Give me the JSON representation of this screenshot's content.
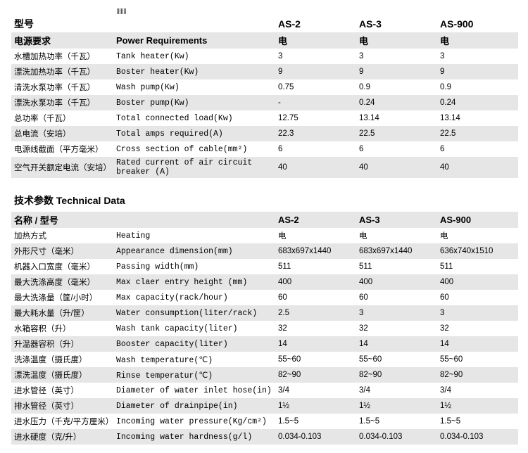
{
  "colors": {
    "stripe": "#e6e6e6",
    "text": "#000000"
  },
  "models": [
    "AS-2",
    "AS-3",
    "AS-900"
  ],
  "top": {
    "model_label": "型号",
    "power_label_zh": "电源要求",
    "power_label_en": "Power Requirements",
    "electric": "电",
    "rows": [
      {
        "zh": "水槽加热功率（千瓦）",
        "en": "Tank heater(Kw)",
        "v": [
          "3",
          "3",
          "3"
        ]
      },
      {
        "zh": "漂洗加热功率（千瓦）",
        "en": "Boster heater(Kw)",
        "v": [
          "9",
          "9",
          "9"
        ]
      },
      {
        "zh": "清洗水泵功率（千瓦）",
        "en": "Wash pump(Kw)",
        "v": [
          "0.75",
          "0.9",
          "0.9"
        ]
      },
      {
        "zh": "漂洗水泵功率（千瓦）",
        "en": "Boster pump(Kw)",
        "v": [
          "-",
          "0.24",
          "0.24"
        ]
      },
      {
        "zh": "总功率（千瓦）",
        "en": "Total connected load(Kw)",
        "v": [
          "12.75",
          "13.14",
          "13.14"
        ]
      },
      {
        "zh": "总电流（安培）",
        "en": "Total amps required(A)",
        "v": [
          "22.3",
          "22.5",
          "22.5"
        ]
      },
      {
        "zh": "电源线截面（平方毫米）",
        "en": "Cross section of cable(mm²)",
        "v": [
          "6",
          "6",
          "6"
        ]
      },
      {
        "zh": "空气开关额定电流（安培）",
        "en": "Rated current of air circuit breaker (A)",
        "v": [
          "40",
          "40",
          "40"
        ]
      }
    ]
  },
  "bottom": {
    "title": "技术参数 Technical Data",
    "name_label": "名称 / 型号",
    "electric": "电",
    "rows": [
      {
        "zh": "加热方式",
        "en": "Heating",
        "v": [
          "电",
          "电",
          "电"
        ]
      },
      {
        "zh": "外形尺寸（毫米）",
        "en": "Appearance dimension(mm)",
        "v": [
          "683x697x1440",
          "683x697x1440",
          "636x740x1510"
        ]
      },
      {
        "zh": "机器入口宽度（毫米）",
        "en": "Passing width(mm)",
        "v": [
          "511",
          "511",
          "511"
        ]
      },
      {
        "zh": "最大洗涤高度（毫米）",
        "en": "Max claer entry height (mm)",
        "v": [
          "400",
          "400",
          "400"
        ]
      },
      {
        "zh": "最大洗涤量（筐/小时）",
        "en": "Max capacity(rack/hour)",
        "v": [
          "60",
          "60",
          "60"
        ]
      },
      {
        "zh": "最大耗水量（升/筐）",
        "en": "Water consumption(liter/rack)",
        "v": [
          "2.5",
          "3",
          "3"
        ]
      },
      {
        "zh": "水箱容积（升）",
        "en": "Wash tank capacity(liter)",
        "v": [
          "32",
          "32",
          "32"
        ]
      },
      {
        "zh": "升温器容积（升）",
        "en": "Booster capacity(liter)",
        "v": [
          "14",
          "14",
          "14"
        ]
      },
      {
        "zh": "洗涤温度（摄氏度）",
        "en": "Wash temperature(℃)",
        "v": [
          "55~60",
          "55~60",
          "55~60"
        ]
      },
      {
        "zh": "漂洗温度（摄氏度）",
        "en": "Rinse temperatur(℃)",
        "v": [
          "82~90",
          "82~90",
          "82~90"
        ]
      },
      {
        "zh": "进水管径（英寸）",
        "en": "Diameter of water inlet hose(in)",
        "v": [
          "3/4",
          "3/4",
          "3/4"
        ]
      },
      {
        "zh": "排水管径（英寸）",
        "en": "Diameter of drainpipe(in)",
        "v": [
          "1½",
          "1½",
          "1½"
        ]
      },
      {
        "zh": "进水压力（千克/平方厘米）",
        "en": "Incoming water pressure(Kg/cm²)",
        "v": [
          "1.5~5",
          "1.5~5",
          "1.5~5"
        ]
      },
      {
        "zh": "进水硬度（克/升）",
        "en": "Incoming water hardness(g/l)",
        "v": [
          "0.034-0.103",
          "0.034-0.103",
          "0.034-0.103"
        ]
      }
    ]
  }
}
